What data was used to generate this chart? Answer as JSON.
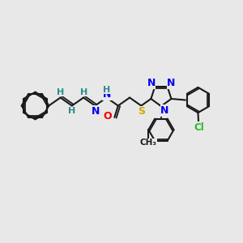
{
  "bg_color": "#e8e8e8",
  "bond_color": "#1a1a1a",
  "bond_width": 1.5,
  "atom_colors": {
    "N": "#0000ee",
    "O": "#ee0000",
    "S": "#ccaa00",
    "Cl": "#22bb22",
    "H_label": "#2e8b8b",
    "C": "#1a1a1a"
  },
  "figsize": [
    3.0,
    3.0
  ],
  "dpi": 100,
  "xlim": [
    0,
    10
  ],
  "ylim": [
    0,
    10
  ]
}
